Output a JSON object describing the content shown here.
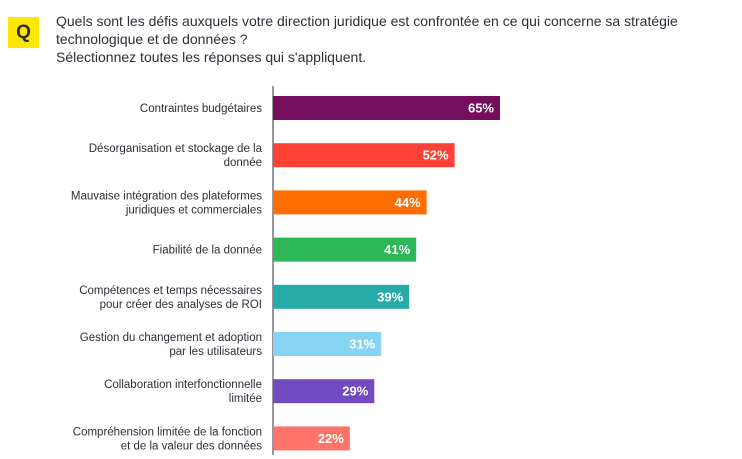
{
  "question": {
    "badge": "Q",
    "line1": "Quels sont les défis auxquels votre direction juridique est confrontée en ce qui concerne sa stratégie",
    "line2": "technologique et de données ?",
    "line3": "Sélectionnez toutes les réponses qui s'appliquent."
  },
  "chart_data": {
    "type": "bar",
    "orientation": "horizontal",
    "title": "",
    "xlabel": "",
    "ylabel": "",
    "xlim": [
      0,
      100
    ],
    "grid": false,
    "categories": [
      [
        "Contraintes budgétaires"
      ],
      [
        "Désorganisation et stockage de la",
        "donnée"
      ],
      [
        "Mauvaise intégration des plateformes",
        "juridiques et commerciales"
      ],
      [
        "Fiabilité de la donnée"
      ],
      [
        "Compétences et temps nécessaires",
        "pour créer des analyses de ROI"
      ],
      [
        "Gestion du changement et adoption",
        "par les utilisateurs"
      ],
      [
        "Collaboration interfonctionnelle",
        "limitée"
      ],
      [
        "Compréhension limitée de la fonction",
        "et de la valeur des données"
      ]
    ],
    "values": [
      65,
      52,
      44,
      41,
      39,
      31,
      29,
      22
    ],
    "value_labels": [
      "65%",
      "52%",
      "44%",
      "41%",
      "39%",
      "31%",
      "29%",
      "22%"
    ],
    "colors": [
      "#750e5c",
      "#ff4136",
      "#ff6d00",
      "#2db757",
      "#27acaa",
      "#87d3f2",
      "#724bc3",
      "#ff736a"
    ]
  }
}
